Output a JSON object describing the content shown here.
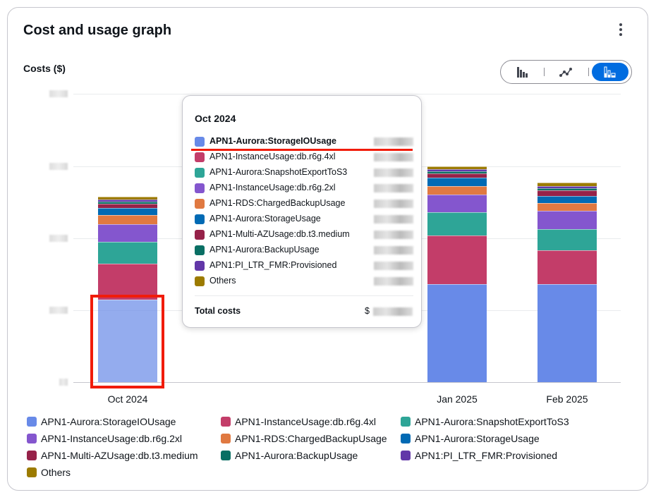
{
  "card": {
    "title": "Cost and usage graph",
    "y_label": "Costs ($)"
  },
  "view_toggle": {
    "options": [
      "bar-chart-icon",
      "line-chart-icon",
      "stacked-bar-chart-icon"
    ],
    "selected": "stacked-bar-chart-icon",
    "accent": "#006ce0"
  },
  "chart_data": {
    "type": "bar",
    "stacked": true,
    "categories": [
      "Oct 2024",
      "Jan 2025",
      "Feb 2025"
    ],
    "ylabel": "Costs ($)",
    "y_ticks_hidden": true,
    "grid": true,
    "series": [
      {
        "name": "APN1-Aurora:StorageIOUsage",
        "color": "#688ae8",
        "values": [
          115,
          136,
          136
        ]
      },
      {
        "name": "APN1-InstanceUsage:db.r6g.4xl",
        "color": "#c33d69",
        "values": [
          50,
          68,
          47
        ]
      },
      {
        "name": "APN1-Aurora:SnapshotExportToS3",
        "color": "#2ea597",
        "values": [
          30,
          32,
          30
        ]
      },
      {
        "name": "APN1-InstanceUsage:db.r6g.2xl",
        "color": "#8456ce",
        "values": [
          25,
          25,
          25
        ]
      },
      {
        "name": "APN1-RDS:ChargedBackupUsage",
        "color": "#e07941",
        "values": [
          12,
          12,
          11
        ]
      },
      {
        "name": "APN1-Aurora:StorageUsage",
        "color": "#016ab4",
        "values": [
          10,
          11,
          10
        ]
      },
      {
        "name": "APN1-Multi-AZUsage:db.t3.medium",
        "color": "#962249",
        "values": [
          6,
          6,
          8
        ]
      },
      {
        "name": "APN1-Aurora:BackupUsage",
        "color": "#096f64",
        "values": [
          3,
          3,
          3
        ]
      },
      {
        "name": "APN1:PI_LTR_FMR:Provisioned",
        "color": "#6237a8",
        "values": [
          3,
          3,
          3
        ]
      },
      {
        "name": "Others",
        "color": "#9c7b00",
        "values": [
          4,
          4,
          4
        ]
      }
    ],
    "legend_position": "bottom"
  },
  "tooltip": {
    "title": "Oct 2024",
    "total_label": "Total costs",
    "currency": "$"
  }
}
